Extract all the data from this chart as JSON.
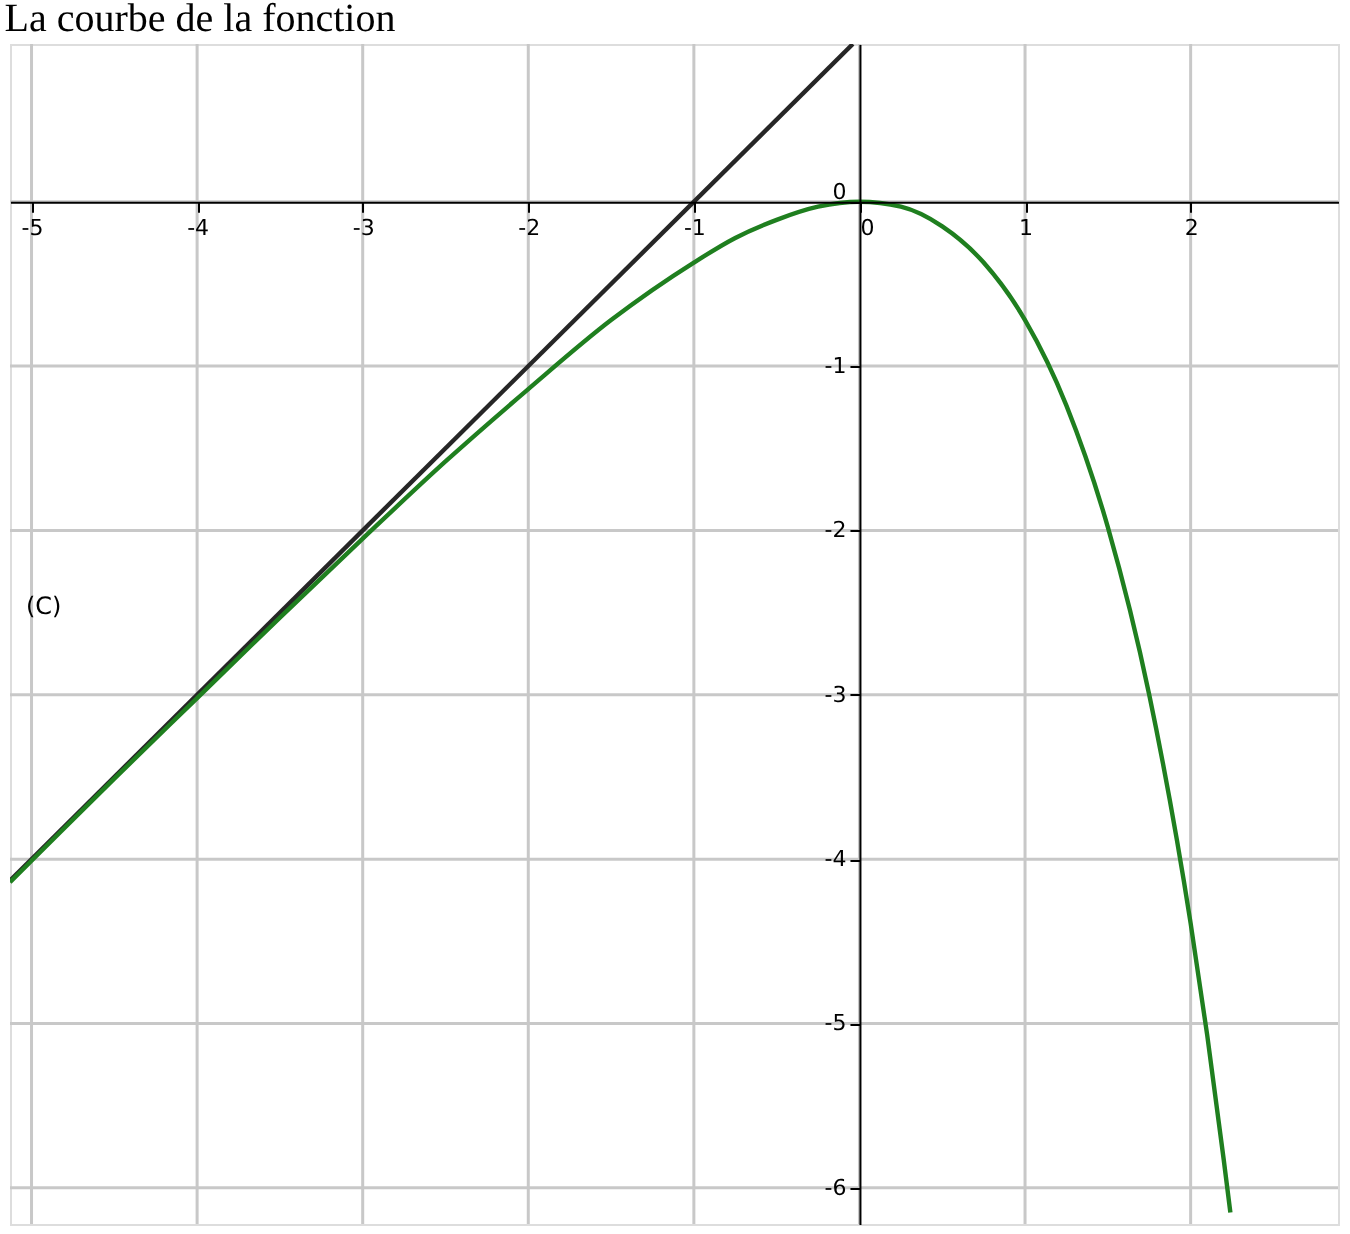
{
  "chart_data": {
    "type": "line",
    "title": "La courbe de la fonction",
    "series": [
      {
        "color": "#262626",
        "x": [
          -5.13,
          -0.04
        ],
        "values": [
          -4.13,
          0.96
        ]
      },
      {
        "color": "#1f7f1f",
        "x": [
          -5.13,
          -5,
          -4.5,
          -4,
          -3.5,
          -3,
          -2.5,
          -2,
          -1.5,
          -1,
          -0.75,
          -0.5,
          -0.25,
          0,
          0.25,
          0.5,
          0.75,
          1,
          1.25,
          1.5,
          1.75,
          2,
          2.1,
          2.2,
          2.24
        ],
        "values": [
          -4.14,
          -4.01,
          -3.51,
          -3.02,
          -2.53,
          -2.05,
          -1.58,
          -1.14,
          -0.72,
          -0.37,
          -0.22,
          -0.11,
          -0.03,
          0,
          -0.03,
          -0.15,
          -0.37,
          -0.72,
          -1.24,
          -1.98,
          -3.0,
          -4.39,
          -5.07,
          -5.83,
          -6.15
        ]
      }
    ],
    "xlim": [
      -5.13,
      2.89
    ],
    "ylim": [
      -6.22,
      0.96
    ],
    "xticks": [
      -5,
      -4,
      -3,
      -2,
      -1,
      0,
      1,
      2
    ],
    "yticks": [
      -6,
      -5,
      -4,
      -3,
      -2,
      -1,
      0
    ],
    "grid": true,
    "line_style": "solid",
    "marker": "none",
    "annotations": [
      "(C)"
    ]
  }
}
